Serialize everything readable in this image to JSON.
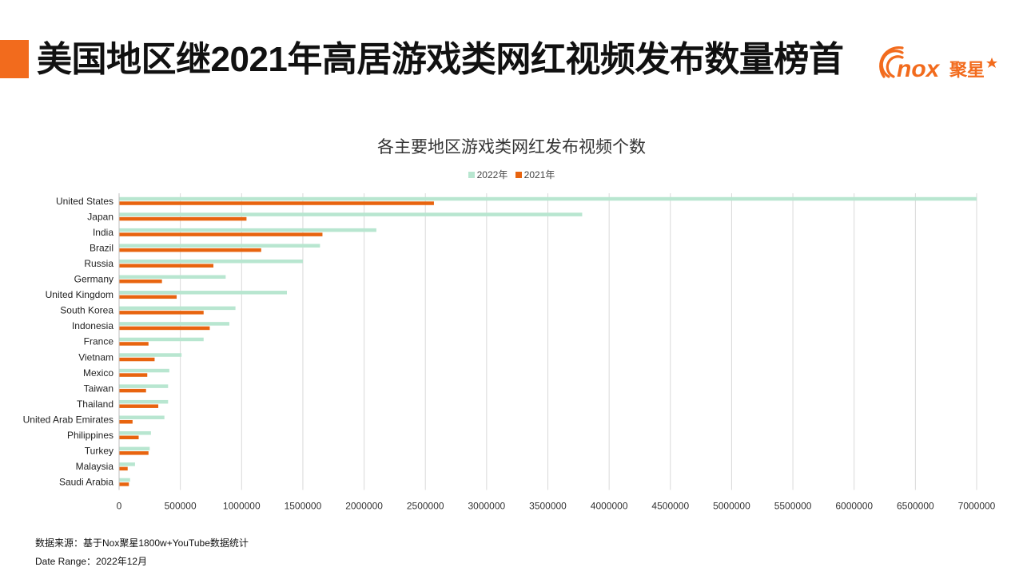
{
  "header": {
    "title": "美国地区继2021年高居游戏类网红视频发布数量榜首",
    "logo_text": "nox",
    "logo_cn": "聚星",
    "accent_color": "#f26b1d"
  },
  "footer": {
    "source": "数据来源：基于Nox聚星1800w+YouTube数据统计",
    "date_range": "Date Range：2022年12月"
  },
  "chart_data": {
    "type": "bar",
    "orientation": "horizontal",
    "title": "各主要地区游戏类网红发布视频个数",
    "categories": [
      "United States",
      "Japan",
      "India",
      "Brazil",
      "Russia",
      "Germany",
      "United Kingdom",
      "South Korea",
      "Indonesia",
      "France",
      "Vietnam",
      "Mexico",
      "Taiwan",
      "Thailand",
      "United Arab Emirates",
      "Philippines",
      "Turkey",
      "Malaysia",
      "Saudi Arabia"
    ],
    "series": [
      {
        "name": "2022年",
        "color": "#b8e6d0",
        "values": [
          7000000,
          3780000,
          2100000,
          1640000,
          1500000,
          870000,
          1370000,
          950000,
          900000,
          690000,
          510000,
          410000,
          400000,
          400000,
          370000,
          260000,
          250000,
          130000,
          90000
        ]
      },
      {
        "name": "2021年",
        "color": "#e8640f",
        "values": [
          2570000,
          1040000,
          1660000,
          1160000,
          770000,
          350000,
          470000,
          690000,
          740000,
          240000,
          290000,
          230000,
          220000,
          320000,
          110000,
          160000,
          240000,
          70000,
          80000
        ]
      }
    ],
    "xlim": [
      0,
      7000000
    ],
    "xticks": [
      0,
      500000,
      1000000,
      1500000,
      2000000,
      2500000,
      3000000,
      3500000,
      4000000,
      4500000,
      5000000,
      5500000,
      6000000,
      6500000,
      7000000
    ],
    "grid": true,
    "legend_position": "top-center"
  }
}
